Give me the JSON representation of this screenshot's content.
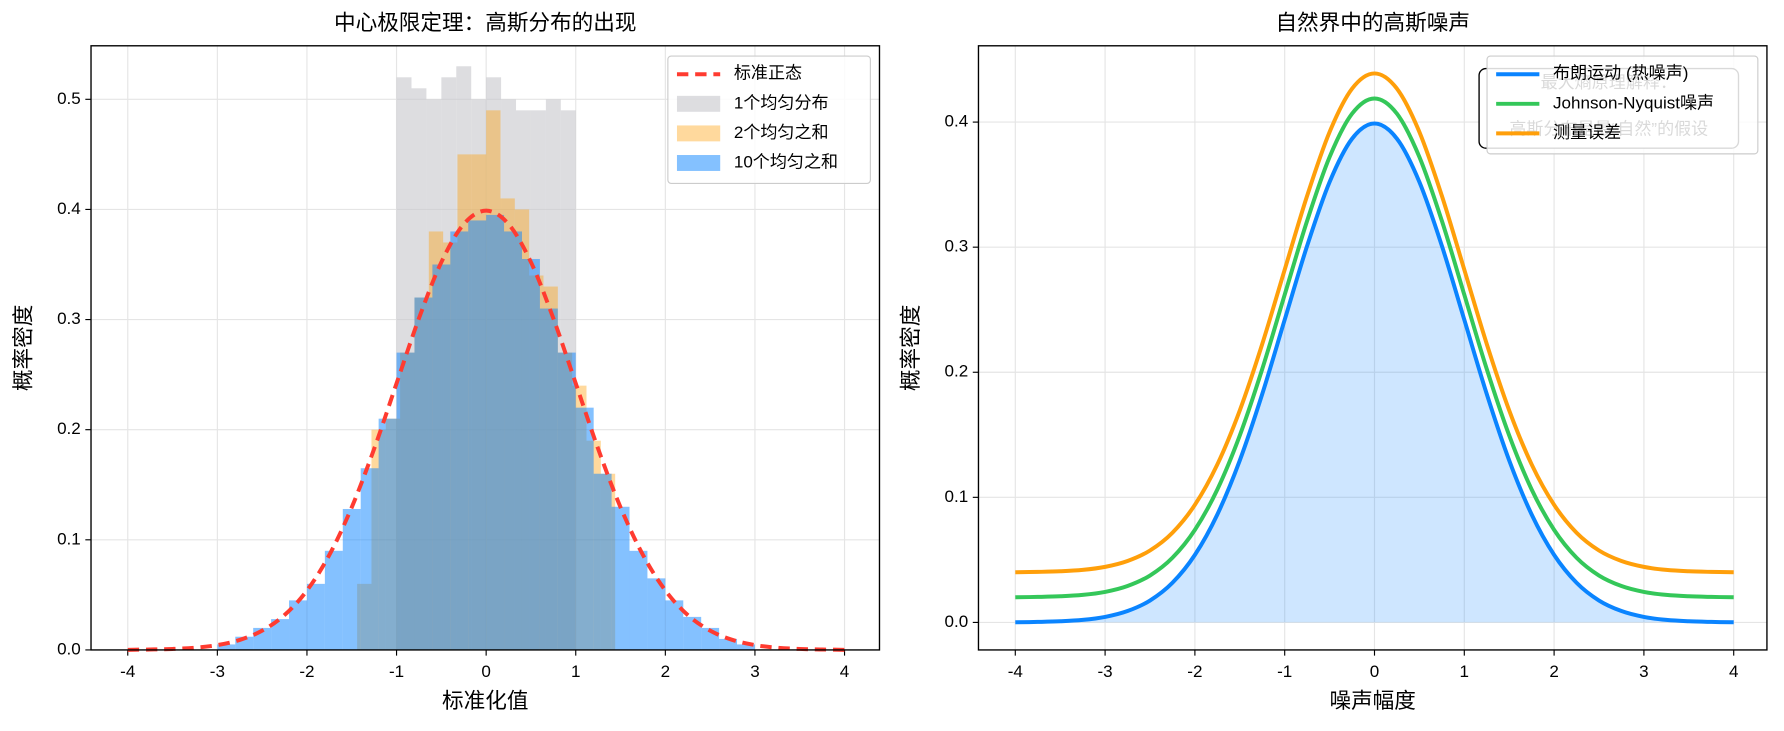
{
  "chart_data": [
    {
      "type": "histogram",
      "title": "中心极限定理：高斯分布的出现",
      "xlabel": "标准化值",
      "ylabel": "概率密度",
      "xlim": [
        -4.41,
        4.39
      ],
      "ylim": [
        0,
        0.5486
      ],
      "xticks": [
        -4,
        -3,
        -2,
        -1,
        0,
        1,
        2,
        3,
        4
      ],
      "yticks": [
        {
          "value": 0,
          "label": "0.0"
        },
        0.1,
        0.2,
        0.3,
        0.4,
        0.5
      ],
      "grid": true,
      "legend": "upper right",
      "lines": [
        {
          "name": "标准正态",
          "color": "#ff3b30",
          "style": "dashed",
          "x": [
            -4,
            -3.75,
            -3.5,
            -3.25,
            -3,
            -2.75,
            -2.5,
            -2.25,
            -2,
            -1.75,
            -1.5,
            -1.25,
            -1,
            -0.75,
            -0.5,
            -0.25,
            0,
            0.25,
            0.5,
            0.75,
            1,
            1.25,
            1.5,
            1.75,
            2,
            2.25,
            2.5,
            2.75,
            3,
            3.25,
            3.5,
            3.75,
            4
          ],
          "values": [
            0.0001,
            0.0004,
            0.0009,
            0.002,
            0.0044,
            0.0091,
            0.0175,
            0.0317,
            0.054,
            0.0863,
            0.1295,
            0.1826,
            0.242,
            0.3011,
            0.3521,
            0.3867,
            0.3989,
            0.3867,
            0.3521,
            0.3011,
            0.242,
            0.1826,
            0.1295,
            0.0863,
            0.054,
            0.0317,
            0.0175,
            0.0091,
            0.0044,
            0.002,
            0.0009,
            0.0004,
            0.0001
          ]
        }
      ],
      "series": [
        {
          "name": "1个均匀分布",
          "color": "#c7c7cc",
          "alpha": 0.6,
          "bins": [
            -1,
            -0.8333,
            -0.6667,
            -0.5,
            -0.3333,
            -0.1667,
            0,
            0.1667,
            0.3333,
            0.5,
            0.6667,
            0.8333,
            1
          ],
          "values": [
            0.52,
            0.51,
            0.5,
            0.52,
            0.53,
            0.5,
            0.52,
            0.5,
            0.49,
            0.49,
            0.5,
            0.49
          ]
        },
        {
          "name": "2个均匀之和",
          "color": "#ff9f0a",
          "alpha": 0.4,
          "bins": [
            -1.44,
            -1.28,
            -1.12,
            -0.96,
            -0.8,
            -0.64,
            -0.48,
            -0.32,
            -0.16,
            0,
            0.16,
            0.32,
            0.48,
            0.64,
            0.8,
            0.96,
            1.12,
            1.28,
            1.44
          ],
          "values": [
            0.06,
            0.2,
            0.21,
            0.27,
            0.32,
            0.38,
            0.37,
            0.45,
            0.45,
            0.49,
            0.41,
            0.4,
            0.34,
            0.33,
            0.27,
            0.24,
            0.19,
            0.16
          ]
        },
        {
          "name": "10个均匀之和",
          "color": "#0a84ff",
          "alpha": 0.5,
          "bins": [
            -3,
            -2.8,
            -2.6,
            -2.4,
            -2.2,
            -2,
            -1.8,
            -1.6,
            -1.4,
            -1.2,
            -1,
            -0.8,
            -0.6,
            -0.4,
            -0.2,
            0,
            0.2,
            0.4,
            0.6,
            0.8,
            1,
            1.2,
            1.4,
            1.6,
            1.8,
            2,
            2.2,
            2.4,
            2.6,
            2.8,
            3
          ],
          "values": [
            0.005,
            0.012,
            0.02,
            0.028,
            0.045,
            0.06,
            0.09,
            0.128,
            0.165,
            0.21,
            0.27,
            0.32,
            0.35,
            0.38,
            0.39,
            0.395,
            0.38,
            0.355,
            0.31,
            0.27,
            0.22,
            0.16,
            0.13,
            0.09,
            0.065,
            0.045,
            0.03,
            0.02,
            0.01,
            0.005
          ]
        }
      ]
    },
    {
      "type": "line",
      "title": "自然界中的高斯噪声",
      "xlabel": "噪声幅度",
      "ylabel": "概率密度",
      "xlim": [
        -4.41,
        4.37
      ],
      "ylim": [
        -0.022,
        0.461
      ],
      "xticks": [
        -4,
        -3,
        -2,
        -1,
        0,
        1,
        2,
        3,
        4
      ],
      "yticks": [
        {
          "value": 0,
          "label": "0.0"
        },
        0.1,
        0.2,
        0.3,
        0.4
      ],
      "grid": true,
      "legend": "upper right",
      "annotation": [
        "最大熵原理解释：",
        "高斯分布是最“自然”的假设"
      ],
      "x": [
        -4,
        -3.75,
        -3.5,
        -3.25,
        -3,
        -2.75,
        -2.5,
        -2.25,
        -2,
        -1.75,
        -1.5,
        -1.25,
        -1,
        -0.75,
        -0.5,
        -0.25,
        0,
        0.25,
        0.5,
        0.75,
        1,
        1.25,
        1.5,
        1.75,
        2,
        2.25,
        2.5,
        2.75,
        3,
        3.25,
        3.5,
        3.75,
        4
      ],
      "series": [
        {
          "name": "布朗运动 (热噪声)",
          "color": "#0a84ff",
          "fill": true,
          "fill_color": "#0a84ff",
          "fill_alpha": 0.2,
          "values": [
            0.0001,
            0.0004,
            0.0009,
            0.002,
            0.0044,
            0.0091,
            0.0175,
            0.0317,
            0.054,
            0.0863,
            0.1295,
            0.1826,
            0.242,
            0.3011,
            0.3521,
            0.3867,
            0.3989,
            0.3867,
            0.3521,
            0.3011,
            0.242,
            0.1826,
            0.1295,
            0.0863,
            0.054,
            0.0317,
            0.0175,
            0.0091,
            0.0044,
            0.002,
            0.0009,
            0.0004,
            0.0001
          ]
        },
        {
          "name": "Johnson-Nyquist噪声",
          "color": "#34c759",
          "values": [
            0.0201,
            0.0204,
            0.0209,
            0.022,
            0.0244,
            0.0291,
            0.0375,
            0.0517,
            0.074,
            0.1063,
            0.1495,
            0.2026,
            0.262,
            0.3211,
            0.3721,
            0.4067,
            0.4189,
            0.4067,
            0.3721,
            0.3211,
            0.262,
            0.2026,
            0.1495,
            0.1063,
            0.074,
            0.0517,
            0.0375,
            0.0291,
            0.0244,
            0.022,
            0.0209,
            0.0204,
            0.0201
          ]
        },
        {
          "name": "测量误差",
          "color": "#ff9f0a",
          "values": [
            0.0401,
            0.0404,
            0.0409,
            0.042,
            0.0444,
            0.0491,
            0.0575,
            0.0717,
            0.094,
            0.1263,
            0.1695,
            0.2226,
            0.282,
            0.3411,
            0.3921,
            0.4267,
            0.4389,
            0.4267,
            0.3921,
            0.3411,
            0.282,
            0.2226,
            0.1695,
            0.1263,
            0.094,
            0.0717,
            0.0575,
            0.0491,
            0.0444,
            0.042,
            0.0409,
            0.0404,
            0.0401
          ]
        }
      ]
    }
  ]
}
